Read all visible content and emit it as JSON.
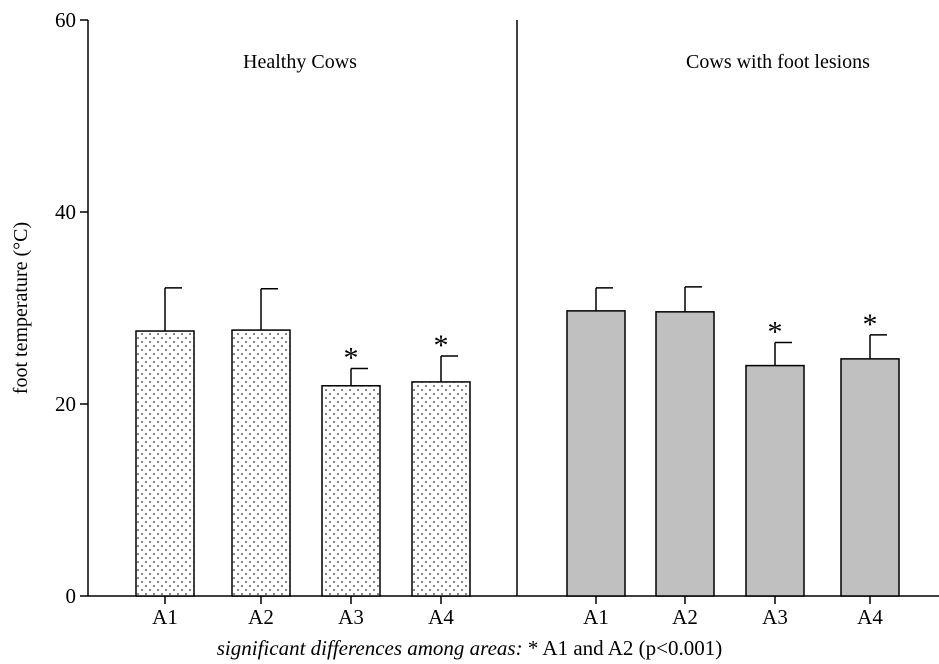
{
  "chart_data": {
    "type": "bar",
    "ylabel": "foot temperature (°C)",
    "ylim": [
      0,
      60
    ],
    "yticks": [
      0,
      20,
      40,
      60
    ],
    "grid": false,
    "groups": [
      {
        "name": "Healthy Cows",
        "categories": [
          "A1",
          "A2",
          "A3",
          "A4"
        ],
        "values": [
          27.6,
          27.7,
          21.9,
          22.3
        ],
        "errors": [
          4.5,
          4.3,
          1.8,
          2.7
        ],
        "significant": [
          false,
          false,
          true,
          true
        ],
        "fill": "dotted"
      },
      {
        "name": "Cows with foot lesions",
        "categories": [
          "A1",
          "A2",
          "A3",
          "A4"
        ],
        "values": [
          29.7,
          29.6,
          24.0,
          24.7
        ],
        "errors": [
          2.4,
          2.6,
          2.4,
          2.5
        ],
        "significant": [
          false,
          false,
          true,
          true
        ],
        "fill": "#c0c0c0"
      }
    ],
    "significance_marker": "*",
    "footnote": {
      "italic": "significant differences among areas:",
      "rest": " * A1 and A2 (p<0.001)"
    }
  }
}
